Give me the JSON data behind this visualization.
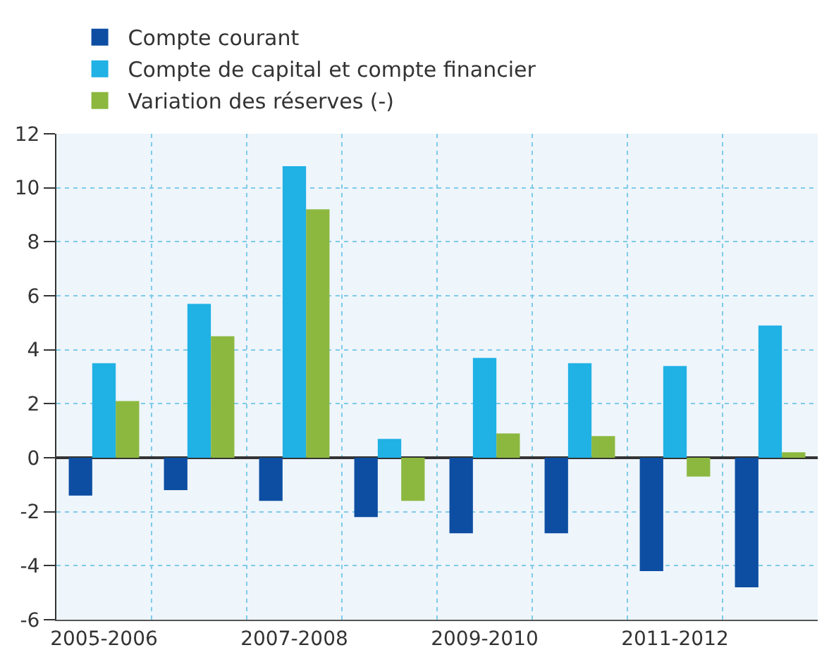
{
  "chart_data": {
    "type": "bar",
    "categories": [
      "2005-2006",
      null,
      "2007-2008",
      null,
      "2009-2010",
      null,
      "2011-2012",
      null
    ],
    "series": [
      {
        "name": "Compte courant",
        "color": "#0d4ea2",
        "values": [
          -1.4,
          -1.2,
          -1.6,
          -2.2,
          -2.8,
          -2.8,
          -4.2,
          -4.8
        ]
      },
      {
        "name": "Compte de capital et compte financier",
        "color": "#20b1e5",
        "values": [
          3.5,
          5.7,
          10.8,
          0.7,
          3.7,
          3.5,
          3.4,
          4.9
        ]
      },
      {
        "name": "Variation des réserves (-)",
        "color": "#8cb840",
        "values": [
          2.1,
          4.5,
          9.2,
          -1.6,
          0.9,
          0.8,
          -0.7,
          0.2
        ]
      }
    ],
    "ylim": [
      -6,
      12
    ],
    "yticks": [
      -6,
      -4,
      -2,
      0,
      2,
      4,
      6,
      8,
      10,
      12
    ],
    "grid": true,
    "legend": "top"
  }
}
